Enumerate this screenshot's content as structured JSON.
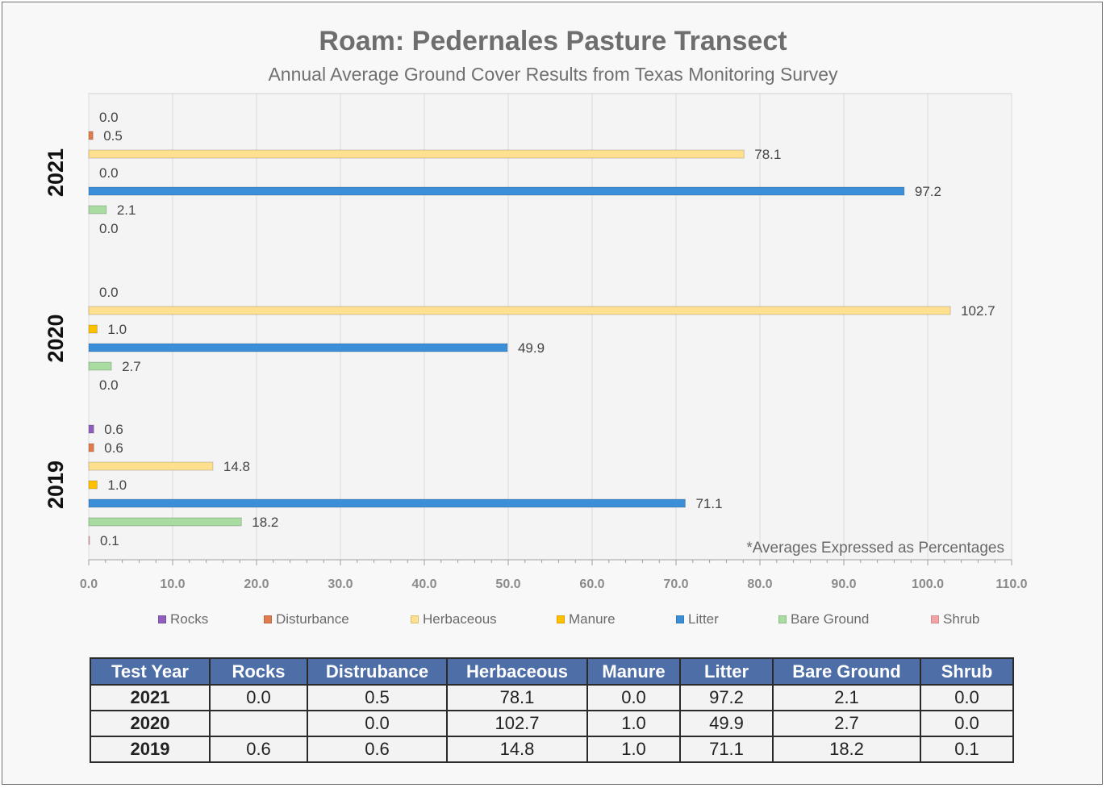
{
  "title": "Roam: Pedernales Pasture Transect",
  "subtitle": "Annual Average Ground Cover Results from Texas Monitoring Survey",
  "note": "*Averages Expressed as Percentages",
  "colors": {
    "Rocks": "#8e5fbd",
    "Disturbance": "#e07b4d",
    "Herbaceous": "#ffe08f",
    "Manure": "#ffc000",
    "Litter": "#3b8fd9",
    "Bare Ground": "#a8dca0",
    "Shrub": "#f4a3a8"
  },
  "chart_data": {
    "type": "bar",
    "orientation": "horizontal",
    "categories": [
      "2021",
      "2020",
      "2019"
    ],
    "series": [
      {
        "name": "Rocks",
        "values": [
          0.0,
          null,
          0.6
        ]
      },
      {
        "name": "Disturbance",
        "values": [
          0.5,
          0.0,
          0.6
        ]
      },
      {
        "name": "Herbaceous",
        "values": [
          78.1,
          102.7,
          14.8
        ]
      },
      {
        "name": "Manure",
        "values": [
          0.0,
          1.0,
          1.0
        ]
      },
      {
        "name": "Litter",
        "values": [
          97.2,
          49.9,
          71.1
        ]
      },
      {
        "name": "Bare Ground",
        "values": [
          2.1,
          2.7,
          18.2
        ]
      },
      {
        "name": "Shrub",
        "values": [
          0.0,
          0.0,
          0.1
        ]
      }
    ],
    "data_labels": [
      [
        "0.0",
        "0.5",
        "78.1",
        "0.0",
        "97.2",
        "2.1",
        "0.0"
      ],
      [
        "",
        "0.0",
        "102.7",
        "1.0",
        "49.9",
        "2.7",
        "0.0"
      ],
      [
        "0.6",
        "0.6",
        "14.8",
        "1.0",
        "71.1",
        "18.2",
        "0.1"
      ]
    ],
    "xlim": [
      0,
      110
    ],
    "xticks": [
      "0.0",
      "10.0",
      "20.0",
      "30.0",
      "40.0",
      "50.0",
      "60.0",
      "70.0",
      "80.0",
      "90.0",
      "100.0",
      "110.0"
    ],
    "grid": true,
    "legend": "bottom"
  },
  "table": {
    "headers": [
      "Test Year",
      "Rocks",
      "Distrubance",
      "Herbaceous",
      "Manure",
      "Litter",
      "Bare Ground",
      "Shrub"
    ],
    "rows": [
      [
        "2021",
        "0.0",
        "0.5",
        "78.1",
        "0.0",
        "97.2",
        "2.1",
        "0.0"
      ],
      [
        "2020",
        "",
        "0.0",
        "102.7",
        "1.0",
        "49.9",
        "2.7",
        "0.0"
      ],
      [
        "2019",
        "0.6",
        "0.6",
        "14.8",
        "1.0",
        "71.1",
        "18.2",
        "0.1"
      ]
    ]
  }
}
